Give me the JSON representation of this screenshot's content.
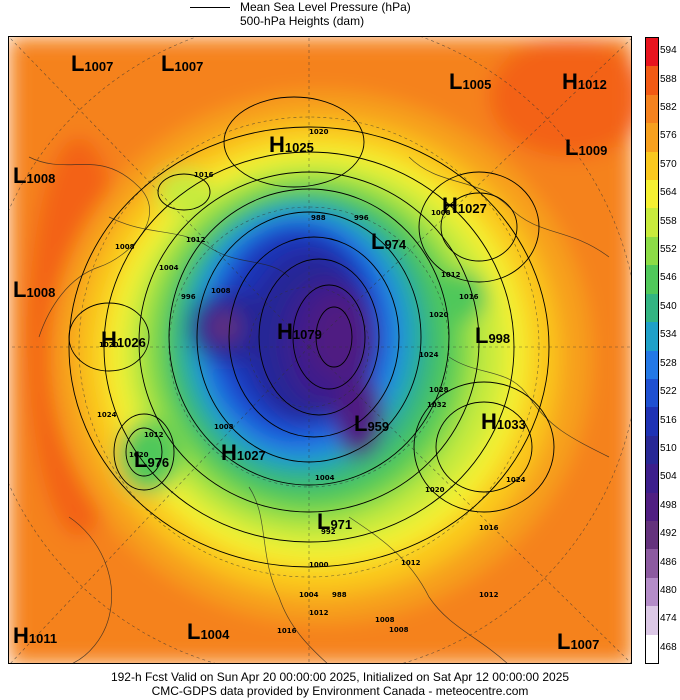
{
  "legend": {
    "line1": "Mean Sea Level Pressure (hPa)",
    "line2": "500-hPa Heights (dam)"
  },
  "colorbar": {
    "ticks": [
      "594",
      "588",
      "582",
      "576",
      "570",
      "564",
      "558",
      "552",
      "546",
      "540",
      "534",
      "528",
      "522",
      "516",
      "510",
      "504",
      "498",
      "492",
      "486",
      "480",
      "474",
      "468"
    ],
    "colors": [
      "#e8141e",
      "#f25a14",
      "#f5821e",
      "#f7a01e",
      "#fac81e",
      "#f5f032",
      "#c8eb3c",
      "#8cdc46",
      "#50c85a",
      "#32b482",
      "#1ea0c8",
      "#2378e6",
      "#1e50d2",
      "#1e32b4",
      "#282896",
      "#3c1e8c",
      "#501e82",
      "#64327d",
      "#8c5aa0",
      "#b48cc8",
      "#dcc8e6",
      "#ffffff"
    ]
  },
  "centres": [
    {
      "letter": "L",
      "value": "1007",
      "name": "low-centre-1007-nw"
    },
    {
      "letter": "L",
      "value": "1007",
      "name": "low-centre-1007-n"
    },
    {
      "letter": "L",
      "value": "1005",
      "name": "low-centre-1005"
    },
    {
      "letter": "H",
      "value": "1012",
      "name": "high-centre-1012"
    },
    {
      "letter": "H",
      "value": "1025",
      "name": "high-centre-1025"
    },
    {
      "letter": "L",
      "value": "1009",
      "name": "low-centre-1009"
    },
    {
      "letter": "L",
      "value": "1008",
      "name": "low-centre-1008-a"
    },
    {
      "letter": "H",
      "value": "1027",
      "name": "high-centre-1027-ne"
    },
    {
      "letter": "L",
      "value": "974",
      "name": "low-centre-974"
    },
    {
      "letter": "L",
      "value": "1008",
      "name": "low-centre-1008-b"
    },
    {
      "letter": "H",
      "value": "1026",
      "name": "high-centre-1026"
    },
    {
      "letter": "H",
      "value": "1079",
      "name": "high-centre-1079"
    },
    {
      "letter": "L",
      "value": "998",
      "name": "low-centre-998"
    },
    {
      "letter": "L",
      "value": "959",
      "name": "low-centre-959"
    },
    {
      "letter": "H",
      "value": "1033",
      "name": "high-centre-1033"
    },
    {
      "letter": "L",
      "value": "976",
      "name": "low-centre-976"
    },
    {
      "letter": "H",
      "value": "1027",
      "name": "high-centre-1027-s"
    },
    {
      "letter": "L",
      "value": "971",
      "name": "low-centre-971"
    },
    {
      "letter": "H",
      "value": "1011",
      "name": "high-centre-1011"
    },
    {
      "letter": "L",
      "value": "1004",
      "name": "low-centre-1004"
    },
    {
      "letter": "L",
      "value": "1007",
      "name": "low-centre-1007-se"
    }
  ],
  "isobar_labels": [
    "1020",
    "1016",
    "1012",
    "1008",
    "1004",
    "996",
    "1008",
    "988",
    "996",
    "1008",
    "1012",
    "1016",
    "1020",
    "1024",
    "1028",
    "1032",
    "1024",
    "1020",
    "1016",
    "1012",
    "1008",
    "1004",
    "1000",
    "1012",
    "1008",
    "1012",
    "1016",
    "1020",
    "1024",
    "1020",
    "1012",
    "1008",
    "1004",
    "992",
    "988"
  ],
  "footer": {
    "line1": "192-h Fcst Valid on Sun Apr 20 00:00:00 2025, Initialized on Sat Apr 12 00:00:00 2025",
    "line2": "CMC-GDPS data provided by Environment Canada - meteocentre.com"
  }
}
